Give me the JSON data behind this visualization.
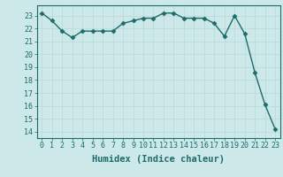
{
  "x": [
    0,
    1,
    2,
    3,
    4,
    5,
    6,
    7,
    8,
    9,
    10,
    11,
    12,
    13,
    14,
    15,
    16,
    17,
    18,
    19,
    20,
    21,
    22,
    23
  ],
  "y": [
    23.2,
    22.6,
    21.8,
    21.3,
    21.8,
    21.8,
    21.8,
    21.8,
    22.4,
    22.6,
    22.8,
    22.8,
    23.2,
    23.2,
    22.8,
    22.8,
    22.8,
    22.4,
    21.4,
    23.0,
    21.6,
    18.6,
    16.1,
    14.2
  ],
  "line_color": "#1e6b6b",
  "marker": "D",
  "marker_size": 2.5,
  "background_color": "#cce8e8",
  "grid_color": "#b8d8d8",
  "xlabel": "Humidex (Indice chaleur)",
  "ylim": [
    13.5,
    23.8
  ],
  "xlim": [
    -0.5,
    23.5
  ],
  "yticks": [
    14,
    15,
    16,
    17,
    18,
    19,
    20,
    21,
    22,
    23
  ],
  "xticks": [
    0,
    1,
    2,
    3,
    4,
    5,
    6,
    7,
    8,
    9,
    10,
    11,
    12,
    13,
    14,
    15,
    16,
    17,
    18,
    19,
    20,
    21,
    22,
    23
  ],
  "tick_fontsize": 6,
  "xlabel_fontsize": 7.5,
  "line_width": 1.0
}
